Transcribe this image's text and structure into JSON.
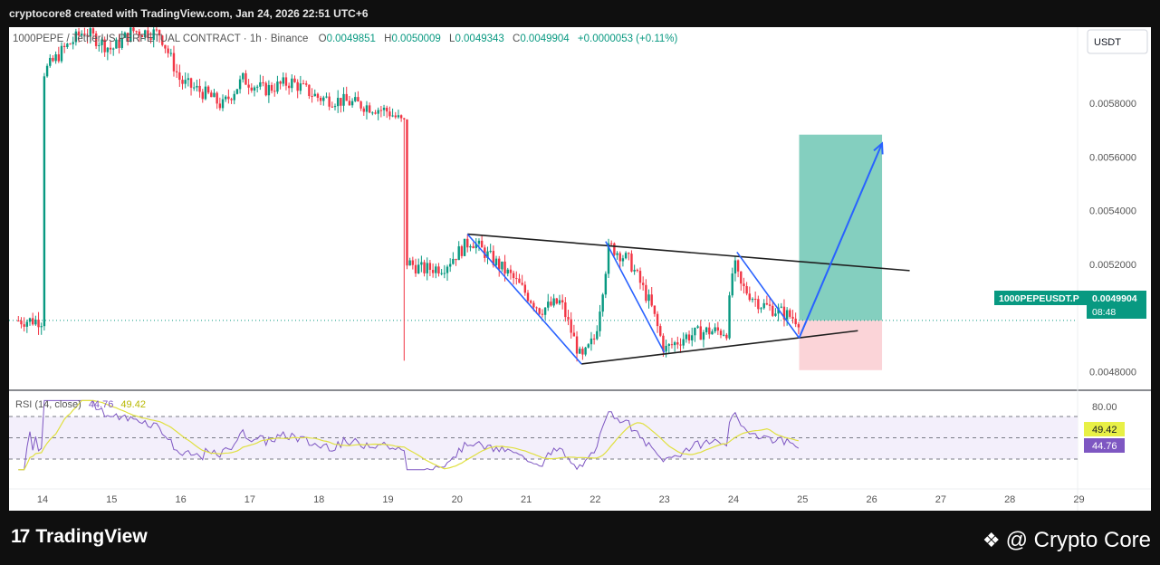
{
  "header": {
    "text": "cryptocore8 created with TradingView.com, Jan 24, 2026 22:51 UTC+6"
  },
  "legend": {
    "symbol_prefix": "1000PEPE / TetherUS PERPETUAL CONTRACT · 1h · Binance",
    "o_label": "O",
    "o_value": "0.0049851",
    "h_label": "H",
    "h_value": "0.0050009",
    "l_label": "L",
    "l_value": "0.0049343",
    "c_label": "C",
    "c_value": "0.0049904",
    "change": "+0.0000053 (+0.11%)"
  },
  "currency_button": "USDT",
  "price_label": {
    "symbol": "1000PEPEUSDT.P",
    "price": "0.0049904",
    "countdown": "08:48"
  },
  "rsi": {
    "label": "RSI (14, close)",
    "value": "44.76",
    "ma_value": "49.42",
    "level_80": "80.00"
  },
  "footer": {
    "brand": "TradingView",
    "watermark": "@ Crypto Core",
    "logo_mark": "17"
  },
  "colors": {
    "up": "#089981",
    "down": "#f23645",
    "rsi_line": "#7e57c2",
    "rsi_ma": "#e0e040",
    "trend_line": "#1f1f1f",
    "arrow": "#2962ff",
    "target_zone": "#84cfbf",
    "stop_zone": "#fbd4d8",
    "price_tag": "#089981"
  },
  "chart_data": {
    "type": "candlestick",
    "title": "1000PEPE / TetherUS PERPETUAL CONTRACT · 1h · Binance",
    "x_ticks": [
      "14",
      "15",
      "16",
      "17",
      "18",
      "19",
      "20",
      "21",
      "22",
      "23",
      "24",
      "25",
      "26",
      "27",
      "28",
      "29"
    ],
    "y_ticks": [
      "0.0058000",
      "0.0056000",
      "0.0054000",
      "0.0052000",
      "0.0048000"
    ],
    "ylim": [
      0.00473,
      0.00605
    ],
    "last_price": 0.0049904,
    "price_path": [
      [
        14.0,
        0.00591
      ],
      [
        14.3,
        0.006
      ],
      [
        14.6,
        0.00607
      ],
      [
        15.0,
        0.006
      ],
      [
        15.3,
        0.00607
      ],
      [
        15.7,
        0.00606
      ],
      [
        16.0,
        0.00588
      ],
      [
        16.4,
        0.00583
      ],
      [
        16.6,
        0.00579
      ],
      [
        16.9,
        0.00589
      ],
      [
        17.2,
        0.00585
      ],
      [
        17.6,
        0.00588
      ],
      [
        18.0,
        0.00582
      ],
      [
        18.3,
        0.00581
      ],
      [
        18.7,
        0.00579
      ],
      [
        19.0,
        0.00577
      ],
      [
        19.2,
        0.00573
      ],
      [
        19.25,
        0.00521
      ],
      [
        19.5,
        0.00518
      ],
      [
        19.8,
        0.00519
      ],
      [
        20.2,
        0.00529
      ],
      [
        20.5,
        0.00522
      ],
      [
        20.8,
        0.00515
      ],
      [
        21.2,
        0.00503
      ],
      [
        21.5,
        0.00506
      ],
      [
        21.8,
        0.00484
      ],
      [
        22.0,
        0.00493
      ],
      [
        22.2,
        0.00527
      ],
      [
        22.5,
        0.00521
      ],
      [
        22.8,
        0.00505
      ],
      [
        23.0,
        0.00488
      ],
      [
        23.3,
        0.00493
      ],
      [
        23.6,
        0.00495
      ],
      [
        23.9,
        0.00495
      ],
      [
        24.0,
        0.00521
      ],
      [
        24.1,
        0.00512
      ],
      [
        24.4,
        0.00505
      ],
      [
        24.7,
        0.00502
      ],
      [
        24.95,
        0.00499
      ]
    ],
    "pattern": {
      "upper_trendline": [
        [
          20.15,
          0.005312
        ],
        [
          26.55,
          0.005176
        ]
      ],
      "lower_trendline": [
        [
          21.8,
          0.004828
        ],
        [
          25.8,
          0.004952
        ]
      ],
      "swing_legs": [
        [
          [
            20.15,
            0.005312
          ],
          [
            21.8,
            0.004828
          ]
        ],
        [
          [
            22.15,
            0.005285
          ],
          [
            23.0,
            0.00487
          ]
        ],
        [
          [
            24.05,
            0.005245
          ],
          [
            24.95,
            0.004925
          ]
        ]
      ]
    },
    "long_position": {
      "entry": 0.0049904,
      "target": 0.005683,
      "stop": 0.004805,
      "x_start": 24.95,
      "x_end": 26.15
    },
    "forecast_arrow": [
      [
        24.95,
        0.004925
      ],
      [
        26.15,
        0.00565
      ]
    ],
    "rsi": {
      "latest": 44.76,
      "ma": 49.42,
      "bands": [
        30,
        70
      ]
    }
  }
}
